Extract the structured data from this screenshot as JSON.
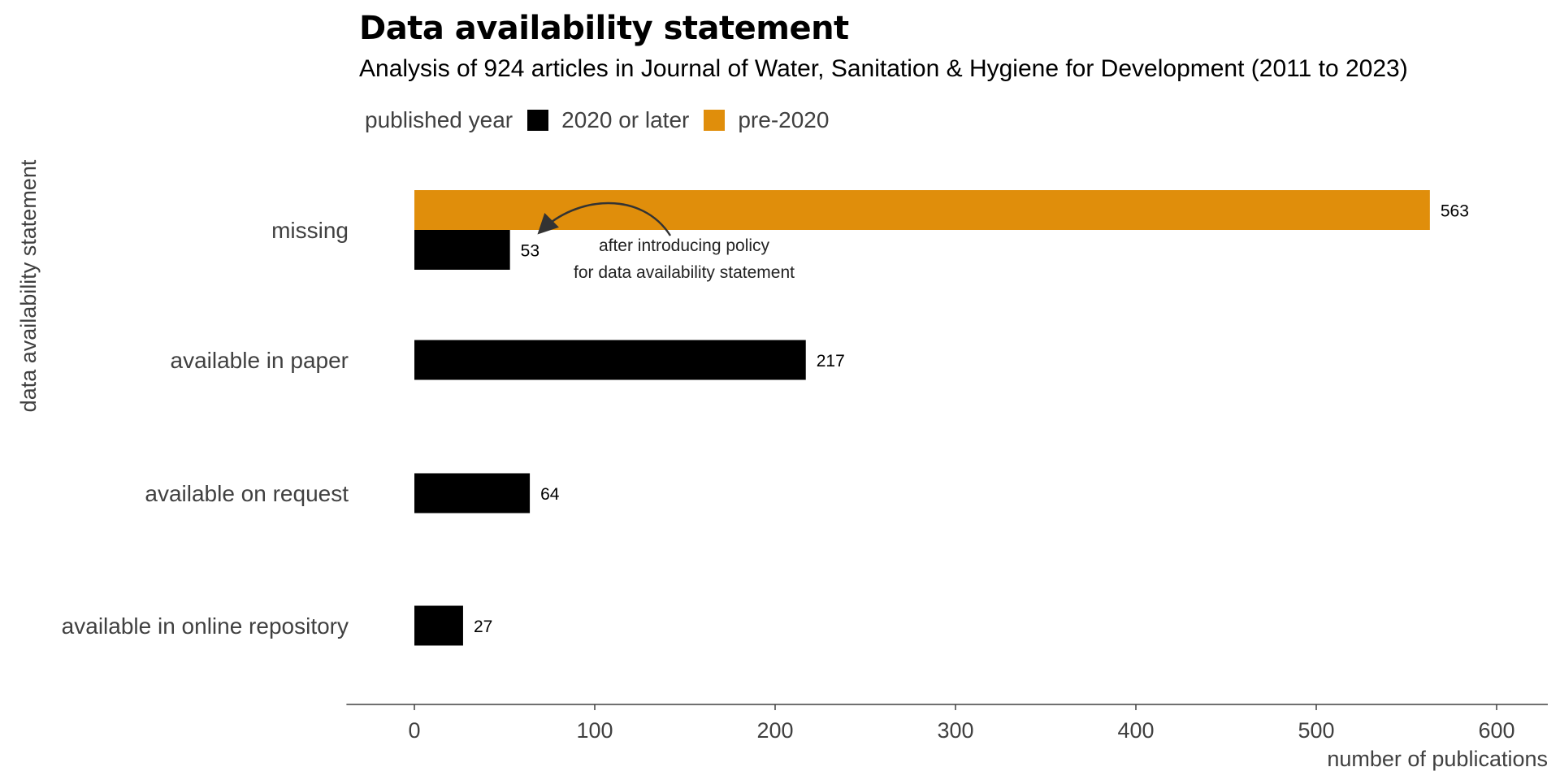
{
  "chart_data": {
    "type": "bar",
    "orientation": "horizontal",
    "title": "Data availability statement",
    "subtitle": "Analysis of 924 articles in Journal of Water, Sanitation & Hygiene for Development (2011 to 2023)",
    "xlabel": "number of publications",
    "ylabel": "data availability statement",
    "xlim": [
      -30,
      630
    ],
    "xticks": [
      0,
      100,
      200,
      300,
      400,
      500,
      600
    ],
    "grid": false,
    "legend": {
      "position": "top",
      "title": "published year",
      "entries": [
        "2020 or later",
        "pre-2020"
      ]
    },
    "categories": [
      "missing",
      "available in paper",
      "available on request",
      "available in online repository"
    ],
    "series": [
      {
        "name": "2020 or later",
        "color": "#000000",
        "values": [
          53,
          217,
          64,
          27
        ]
      },
      {
        "name": "pre-2020",
        "color": "#E08E0B",
        "values": [
          563,
          null,
          null,
          null
        ]
      }
    ],
    "annotation": {
      "lines": [
        "after introducing policy",
        "for data availability statement"
      ],
      "points_to": {
        "category": "missing",
        "series": "2020 or later",
        "value": 53
      }
    }
  }
}
